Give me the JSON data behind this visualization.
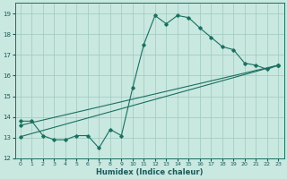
{
  "xlabel": "Humidex (Indice chaleur)",
  "xlim": [
    -0.5,
    23.5
  ],
  "ylim": [
    12,
    19.5
  ],
  "yticks": [
    12,
    13,
    14,
    15,
    16,
    17,
    18,
    19
  ],
  "xticks": [
    0,
    1,
    2,
    3,
    4,
    5,
    6,
    7,
    8,
    9,
    10,
    11,
    12,
    13,
    14,
    15,
    16,
    17,
    18,
    19,
    20,
    21,
    22,
    23
  ],
  "bg_color": "#c8e8e0",
  "grid_color": "#a0c8c0",
  "line_color": "#1a7060",
  "line1_x": [
    0,
    1,
    2,
    3,
    4,
    5,
    6,
    7,
    8,
    9,
    10,
    11,
    12,
    13,
    14,
    15,
    16,
    17,
    18,
    19,
    20,
    21,
    22,
    23
  ],
  "line1_y": [
    13.8,
    13.8,
    13.1,
    12.9,
    12.9,
    13.1,
    13.1,
    12.5,
    13.4,
    13.1,
    15.4,
    17.5,
    18.9,
    18.5,
    18.9,
    18.8,
    18.3,
    17.85,
    17.4,
    17.25,
    16.6,
    16.5,
    16.3,
    16.5
  ],
  "line2_x": [
    0,
    23
  ],
  "line2_y": [
    13.05,
    16.5
  ],
  "line3_x": [
    0,
    23
  ],
  "line3_y": [
    13.6,
    16.5
  ]
}
